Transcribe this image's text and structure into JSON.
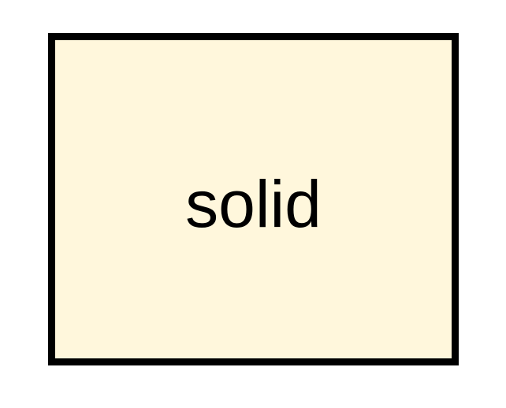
{
  "diagram": {
    "node": {
      "label": "solid",
      "border_style": "solid",
      "fill_color": "#fff7dc",
      "border_color": "#000000"
    }
  }
}
